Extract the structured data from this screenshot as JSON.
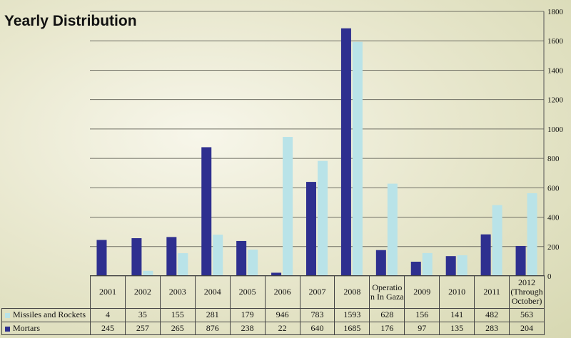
{
  "chart_data": {
    "type": "bar",
    "title": "Yearly Distribution",
    "categories": [
      "2001",
      "2002",
      "2003",
      "2004",
      "2005",
      "2006",
      "2007",
      "2008",
      "Operatio n In Gaza",
      "2009",
      "2010",
      "2011",
      "2012 (Through October)"
    ],
    "series": [
      {
        "name": "Mortars",
        "color": "#2e2f8f",
        "values": [
          245,
          257,
          265,
          876,
          238,
          22,
          640,
          1685,
          176,
          97,
          135,
          283,
          204
        ]
      },
      {
        "name": "Missiles and Rockets",
        "color": "#b9e3e8",
        "values": [
          4,
          35,
          155,
          281,
          179,
          946,
          783,
          1593,
          628,
          156,
          141,
          482,
          563
        ]
      }
    ],
    "ylim": [
      0,
      1800
    ],
    "yticks": [
      0,
      200,
      400,
      600,
      800,
      1000,
      1200,
      1400,
      1600,
      1800
    ],
    "yaxis_side": "right",
    "grid": true,
    "legend": "data-table"
  }
}
